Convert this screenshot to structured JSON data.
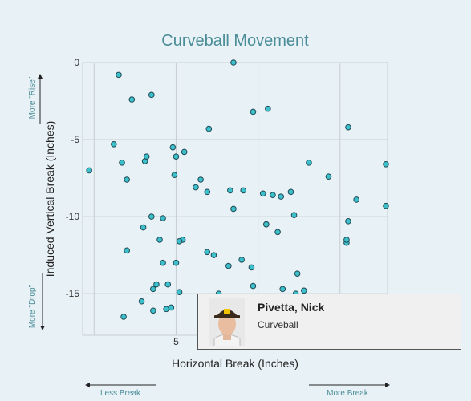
{
  "chart_data": {
    "type": "scatter",
    "title": "Curveball Movement",
    "xlabel": "Horizontal Break (Inches)",
    "ylabel": "Induced Vertical Break (Inches)",
    "xlim": [
      -0.7,
      17.9
    ],
    "ylim": [
      -17.7,
      0
    ],
    "x_ticks": [
      5
    ],
    "y_ticks": [
      0,
      -5,
      -10,
      -15
    ],
    "grid": true,
    "hints": {
      "y_top": "More \"Rise\"",
      "y_bottom": "More \"Drop\"",
      "x_left": "Less Break",
      "x_right": "More Break"
    },
    "point_color": "#3cc0cc",
    "x": [
      8.5,
      1.5,
      3.5,
      2.3,
      9.7,
      10.6,
      7.0,
      15.5,
      1.2,
      1.7,
      3.1,
      3.2,
      4.8,
      5.0,
      5.5,
      6.5,
      -0.3,
      2.0,
      4.9,
      6.2,
      8.3,
      9.1,
      10.3,
      10.9,
      11.4,
      12.0,
      13.1,
      14.3,
      17.8,
      16.0,
      6.9,
      3.5,
      3.0,
      4.2,
      8.5,
      15.5,
      17.8,
      11.2,
      10.5,
      10.5,
      12.2,
      4.0,
      5.4,
      5.2,
      2.0,
      6.9,
      7.3,
      9.0,
      4.2,
      5.0,
      8.2,
      4.5,
      9.6,
      12.4,
      3.8,
      3.6,
      5.2,
      7.6,
      9.7,
      11.5,
      12.8,
      2.9,
      1.8,
      3.6,
      4.4,
      4.7,
      8.0,
      12.3,
      15.4,
      15.4
    ],
    "y": [
      0.0,
      -0.8,
      -2.1,
      -2.4,
      -3.2,
      -3.0,
      -4.3,
      -4.2,
      -5.3,
      -6.5,
      -6.4,
      -6.1,
      -5.5,
      -6.1,
      -5.8,
      -7.6,
      -7.0,
      -7.6,
      -7.3,
      -8.1,
      -8.3,
      -8.3,
      -8.5,
      -8.6,
      -8.7,
      -8.4,
      -6.5,
      -7.4,
      -6.6,
      -8.9,
      -8.4,
      -10.0,
      -10.7,
      -10.1,
      -9.5,
      -10.3,
      -9.3,
      -11.0,
      -10.5,
      -10.5,
      -9.9,
      -11.5,
      -11.5,
      -11.6,
      -12.2,
      -12.3,
      -12.5,
      -12.8,
      -13.0,
      -13.0,
      -13.2,
      -14.4,
      -13.3,
      -13.7,
      -14.4,
      -14.7,
      -14.9,
      -15.0,
      -14.5,
      -14.7,
      -14.8,
      -15.5,
      -16.5,
      -16.1,
      -16.0,
      -15.9,
      -16.7,
      -15.0,
      -11.7,
      -11.5
    ]
  },
  "tooltip": {
    "name": "Pivetta, Nick",
    "pitch": "Curveball"
  }
}
